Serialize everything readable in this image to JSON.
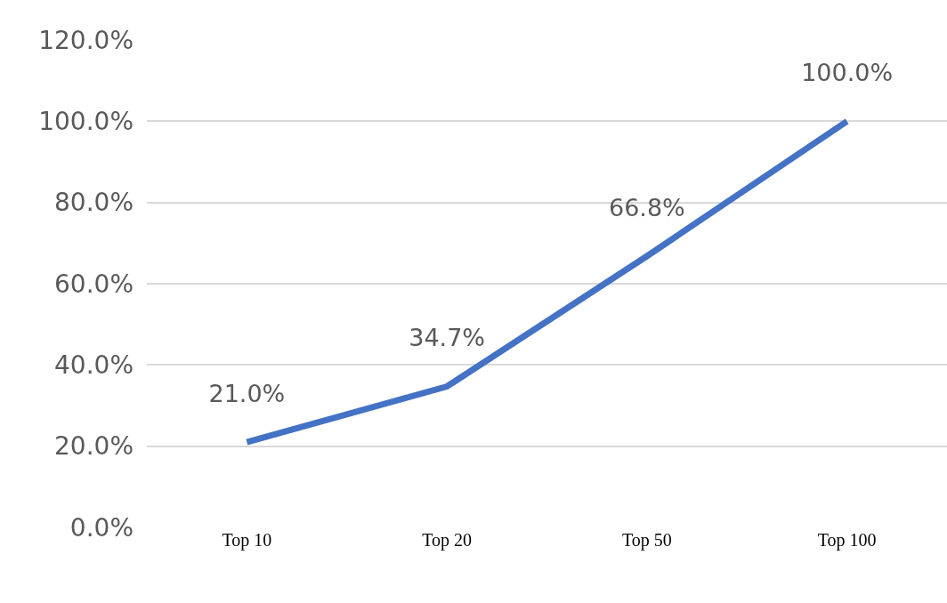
{
  "chart_data": {
    "type": "line",
    "categories": [
      "Top 10",
      "Top 20",
      "Top 50",
      "Top 100"
    ],
    "series": [
      {
        "color": "#4472c4",
        "values": [
          21.0,
          34.7,
          66.8,
          100.0
        ],
        "value_labels": [
          "21.0%",
          "34.7%",
          "66.8%",
          "100.0%"
        ]
      }
    ],
    "ylim": [
      0,
      120
    ],
    "yticks": [
      {
        "value": 0,
        "label": "0.0%"
      },
      {
        "value": 20,
        "label": "20.0%"
      },
      {
        "value": 40,
        "label": "40.0%"
      },
      {
        "value": 60,
        "label": "60.0%"
      },
      {
        "value": 80,
        "label": "80.0%"
      },
      {
        "value": 100,
        "label": "100.0%"
      },
      {
        "value": 120,
        "label": "120.0%"
      }
    ],
    "grid": "y",
    "marker": "none",
    "line_style": "solid",
    "legend": false
  }
}
